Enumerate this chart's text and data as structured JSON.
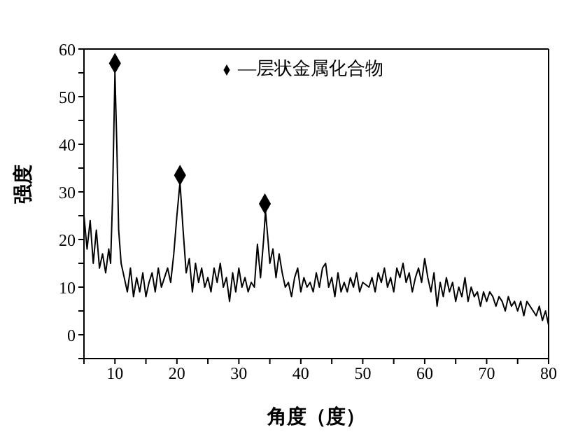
{
  "chart_data": {
    "type": "line",
    "xlabel": "角度（度）",
    "ylabel": "强度",
    "xlim": [
      5,
      80
    ],
    "ylim": [
      -5,
      60
    ],
    "xticks": [
      {
        "value": 5,
        "label": null
      },
      10,
      {
        "value": 15,
        "label": null
      },
      20,
      {
        "value": 25,
        "label": null
      },
      30,
      {
        "value": 35,
        "label": null
      },
      40,
      {
        "value": 45,
        "label": null
      },
      50,
      {
        "value": 55,
        "label": null
      },
      60,
      {
        "value": 65,
        "label": null
      },
      70,
      {
        "value": 75,
        "label": null
      },
      80
    ],
    "yticks": [
      {
        "value": -5,
        "label": null
      },
      0,
      {
        "value": 5,
        "label": null
      },
      10,
      {
        "value": 15,
        "label": null
      },
      20,
      {
        "value": 25,
        "label": null
      },
      30,
      {
        "value": 35,
        "label": null
      },
      40,
      {
        "value": 45,
        "label": null
      },
      50,
      {
        "value": 55,
        "label": null
      },
      60
    ],
    "grid": false,
    "legend": "top",
    "series": [
      {
        "color": "#000000",
        "marker": "none",
        "x": [
          5,
          5.5,
          6,
          6.5,
          7,
          7.5,
          8,
          8.5,
          9,
          9.3,
          9.6,
          10,
          10.3,
          10.6,
          11,
          11.5,
          12,
          12.5,
          13,
          13.5,
          14,
          14.5,
          15,
          15.5,
          16,
          16.5,
          17,
          17.5,
          18,
          18.5,
          19,
          19.5,
          20,
          20.5,
          21,
          21.5,
          22,
          22.5,
          23,
          23.5,
          24,
          24.5,
          25,
          25.5,
          26,
          26.5,
          27,
          27.5,
          28,
          28.5,
          29,
          29.5,
          30,
          30.5,
          31,
          31.5,
          32,
          32.5,
          33,
          33.5,
          34,
          34.3,
          34.7,
          35,
          35.5,
          36,
          36.5,
          37,
          37.5,
          38,
          38.5,
          39,
          39.5,
          40,
          40.5,
          41,
          41.5,
          42,
          42.5,
          43,
          43.5,
          44,
          44.5,
          45,
          45.5,
          46,
          46.5,
          47,
          47.5,
          48,
          48.5,
          49,
          49.5,
          50,
          51,
          51.5,
          52,
          52.5,
          53,
          53.5,
          54,
          54.5,
          55,
          55.5,
          56,
          56.5,
          57,
          57.5,
          58,
          58.5,
          59,
          59.5,
          60,
          60.5,
          61,
          61.5,
          62,
          62.5,
          63,
          63.5,
          64,
          64.5,
          65,
          65.5,
          66,
          66.5,
          67,
          67.5,
          68,
          68.5,
          69,
          69.5,
          70,
          70.5,
          71,
          71.5,
          72,
          72.5,
          73,
          73.5,
          74,
          74.5,
          75,
          75.5,
          76,
          76.5,
          77,
          77.5,
          78,
          78.5,
          79,
          79.5,
          80
        ],
        "values": [
          25,
          18,
          24,
          15,
          22,
          14,
          17,
          13,
          18,
          15,
          28,
          55,
          40,
          22,
          15,
          12,
          9,
          14,
          8,
          12,
          9,
          13,
          8,
          11,
          13,
          9,
          14,
          10,
          12,
          14,
          11,
          17,
          25,
          32,
          22,
          13,
          16,
          9,
          15,
          11,
          14,
          10,
          12,
          9,
          14,
          11,
          15,
          10,
          12,
          7,
          13,
          9,
          14,
          10,
          12,
          9,
          11,
          10,
          19,
          12,
          20,
          26,
          20,
          15,
          18,
          12,
          17,
          13,
          10,
          11,
          8,
          12,
          14,
          9,
          12,
          10,
          11,
          9,
          13,
          10,
          14,
          15,
          10,
          12,
          8,
          13,
          9,
          11,
          9,
          12,
          10,
          13,
          9,
          11,
          10,
          12,
          9,
          13,
          11,
          14,
          10,
          12,
          9,
          14,
          12,
          15,
          11,
          13,
          9,
          12,
          14,
          11,
          16,
          12,
          9,
          13,
          6,
          11,
          8,
          12,
          9,
          11,
          7,
          10,
          8,
          12,
          7,
          10,
          8,
          9,
          6,
          9,
          7,
          9,
          8,
          6,
          8,
          7,
          5,
          8,
          6,
          7,
          5,
          7,
          4,
          7,
          6,
          5,
          4,
          6,
          3,
          5,
          2
        ]
      },
      {
        "type": "scatter",
        "name": "—层状金属化合物",
        "color": "#000000",
        "marker": "diamond",
        "x": [
          10,
          20.5,
          34.2
        ],
        "values": [
          57,
          33.5,
          27.5
        ]
      }
    ]
  }
}
